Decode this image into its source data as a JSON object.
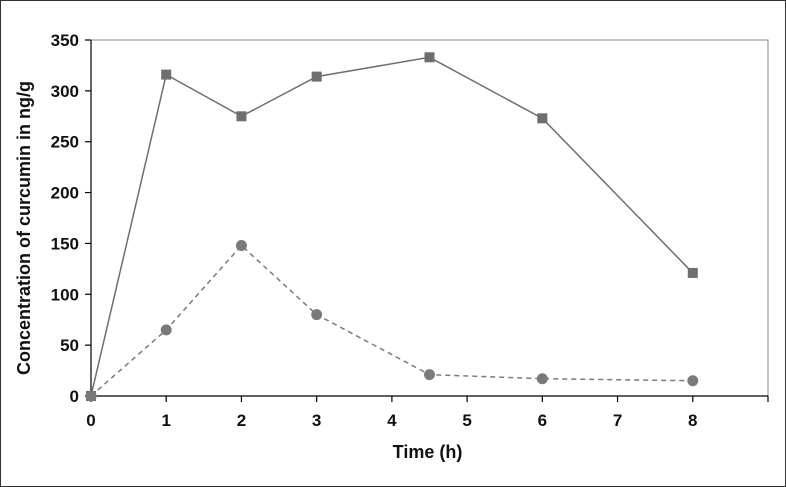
{
  "chart_data": {
    "type": "line",
    "xlabel": "Time (h)",
    "ylabel": "Concentration of curcumin in ng/g",
    "xlim": [
      0,
      9
    ],
    "ylim": [
      0,
      350
    ],
    "xticks": [
      0,
      1,
      2,
      3,
      4,
      5,
      6,
      7,
      8
    ],
    "yticks": [
      0,
      50,
      100,
      150,
      200,
      250,
      300,
      350
    ],
    "grid": false,
    "legend": "none",
    "series": [
      {
        "marker": "square",
        "line_style": "solid",
        "color": "#6e6e6e",
        "x": [
          0,
          1,
          2,
          3,
          4.5,
          6,
          8
        ],
        "y": [
          0,
          316,
          275,
          314,
          333,
          273,
          121
        ]
      },
      {
        "marker": "circle",
        "line_style": "dashed",
        "color": "#7a7a7a",
        "x": [
          0,
          1,
          2,
          3,
          4.5,
          6,
          8
        ],
        "y": [
          0,
          65,
          148,
          80,
          21,
          17,
          15
        ]
      }
    ]
  }
}
